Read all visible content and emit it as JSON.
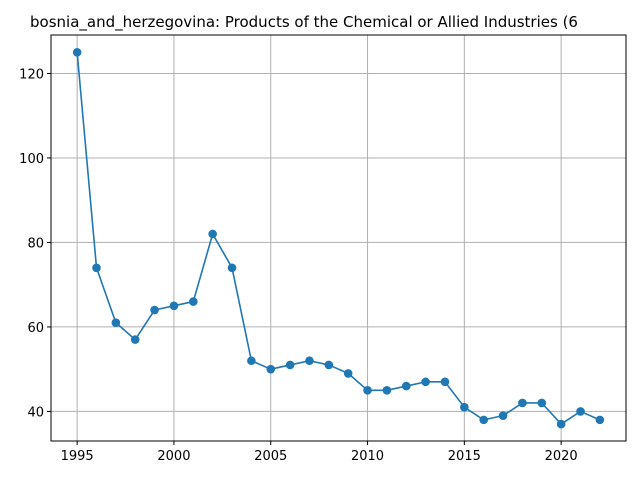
{
  "chart_data": {
    "type": "line",
    "title": "bosnia_and_herzegovina: Products of the Chemical or Allied Industries (6",
    "xlabel": "",
    "ylabel": "",
    "x": [
      1995,
      1996,
      1997,
      1998,
      1999,
      2000,
      2001,
      2002,
      2003,
      2004,
      2005,
      2006,
      2007,
      2008,
      2009,
      2010,
      2011,
      2012,
      2013,
      2014,
      2015,
      2016,
      2017,
      2018,
      2019,
      2020,
      2021,
      2022
    ],
    "series": [
      {
        "values": [
          125,
          74,
          61,
          57,
          64,
          65,
          66,
          82,
          74,
          52,
          50,
          51,
          52,
          51,
          49,
          45,
          45,
          46,
          47,
          47,
          41,
          38,
          39,
          42,
          42,
          37,
          40,
          38
        ],
        "color": "#1f77b4",
        "marker": "circle"
      }
    ],
    "xlim": [
      1993.65,
      1984.0
    ],
    "ylim": [
      33.0,
      129.1
    ],
    "xticks": [
      1995,
      2000,
      2005,
      2010,
      2015,
      2020
    ],
    "xtick_labels": [
      "1995",
      "2000",
      "2005",
      "2010",
      "2015",
      "2020"
    ],
    "yticks": [
      40,
      60,
      80,
      100,
      120
    ],
    "ytick_labels": [
      "40",
      "60",
      "80",
      "100",
      "120"
    ],
    "grid": true,
    "grid_color": "#b0b0b0",
    "legend": "none"
  }
}
